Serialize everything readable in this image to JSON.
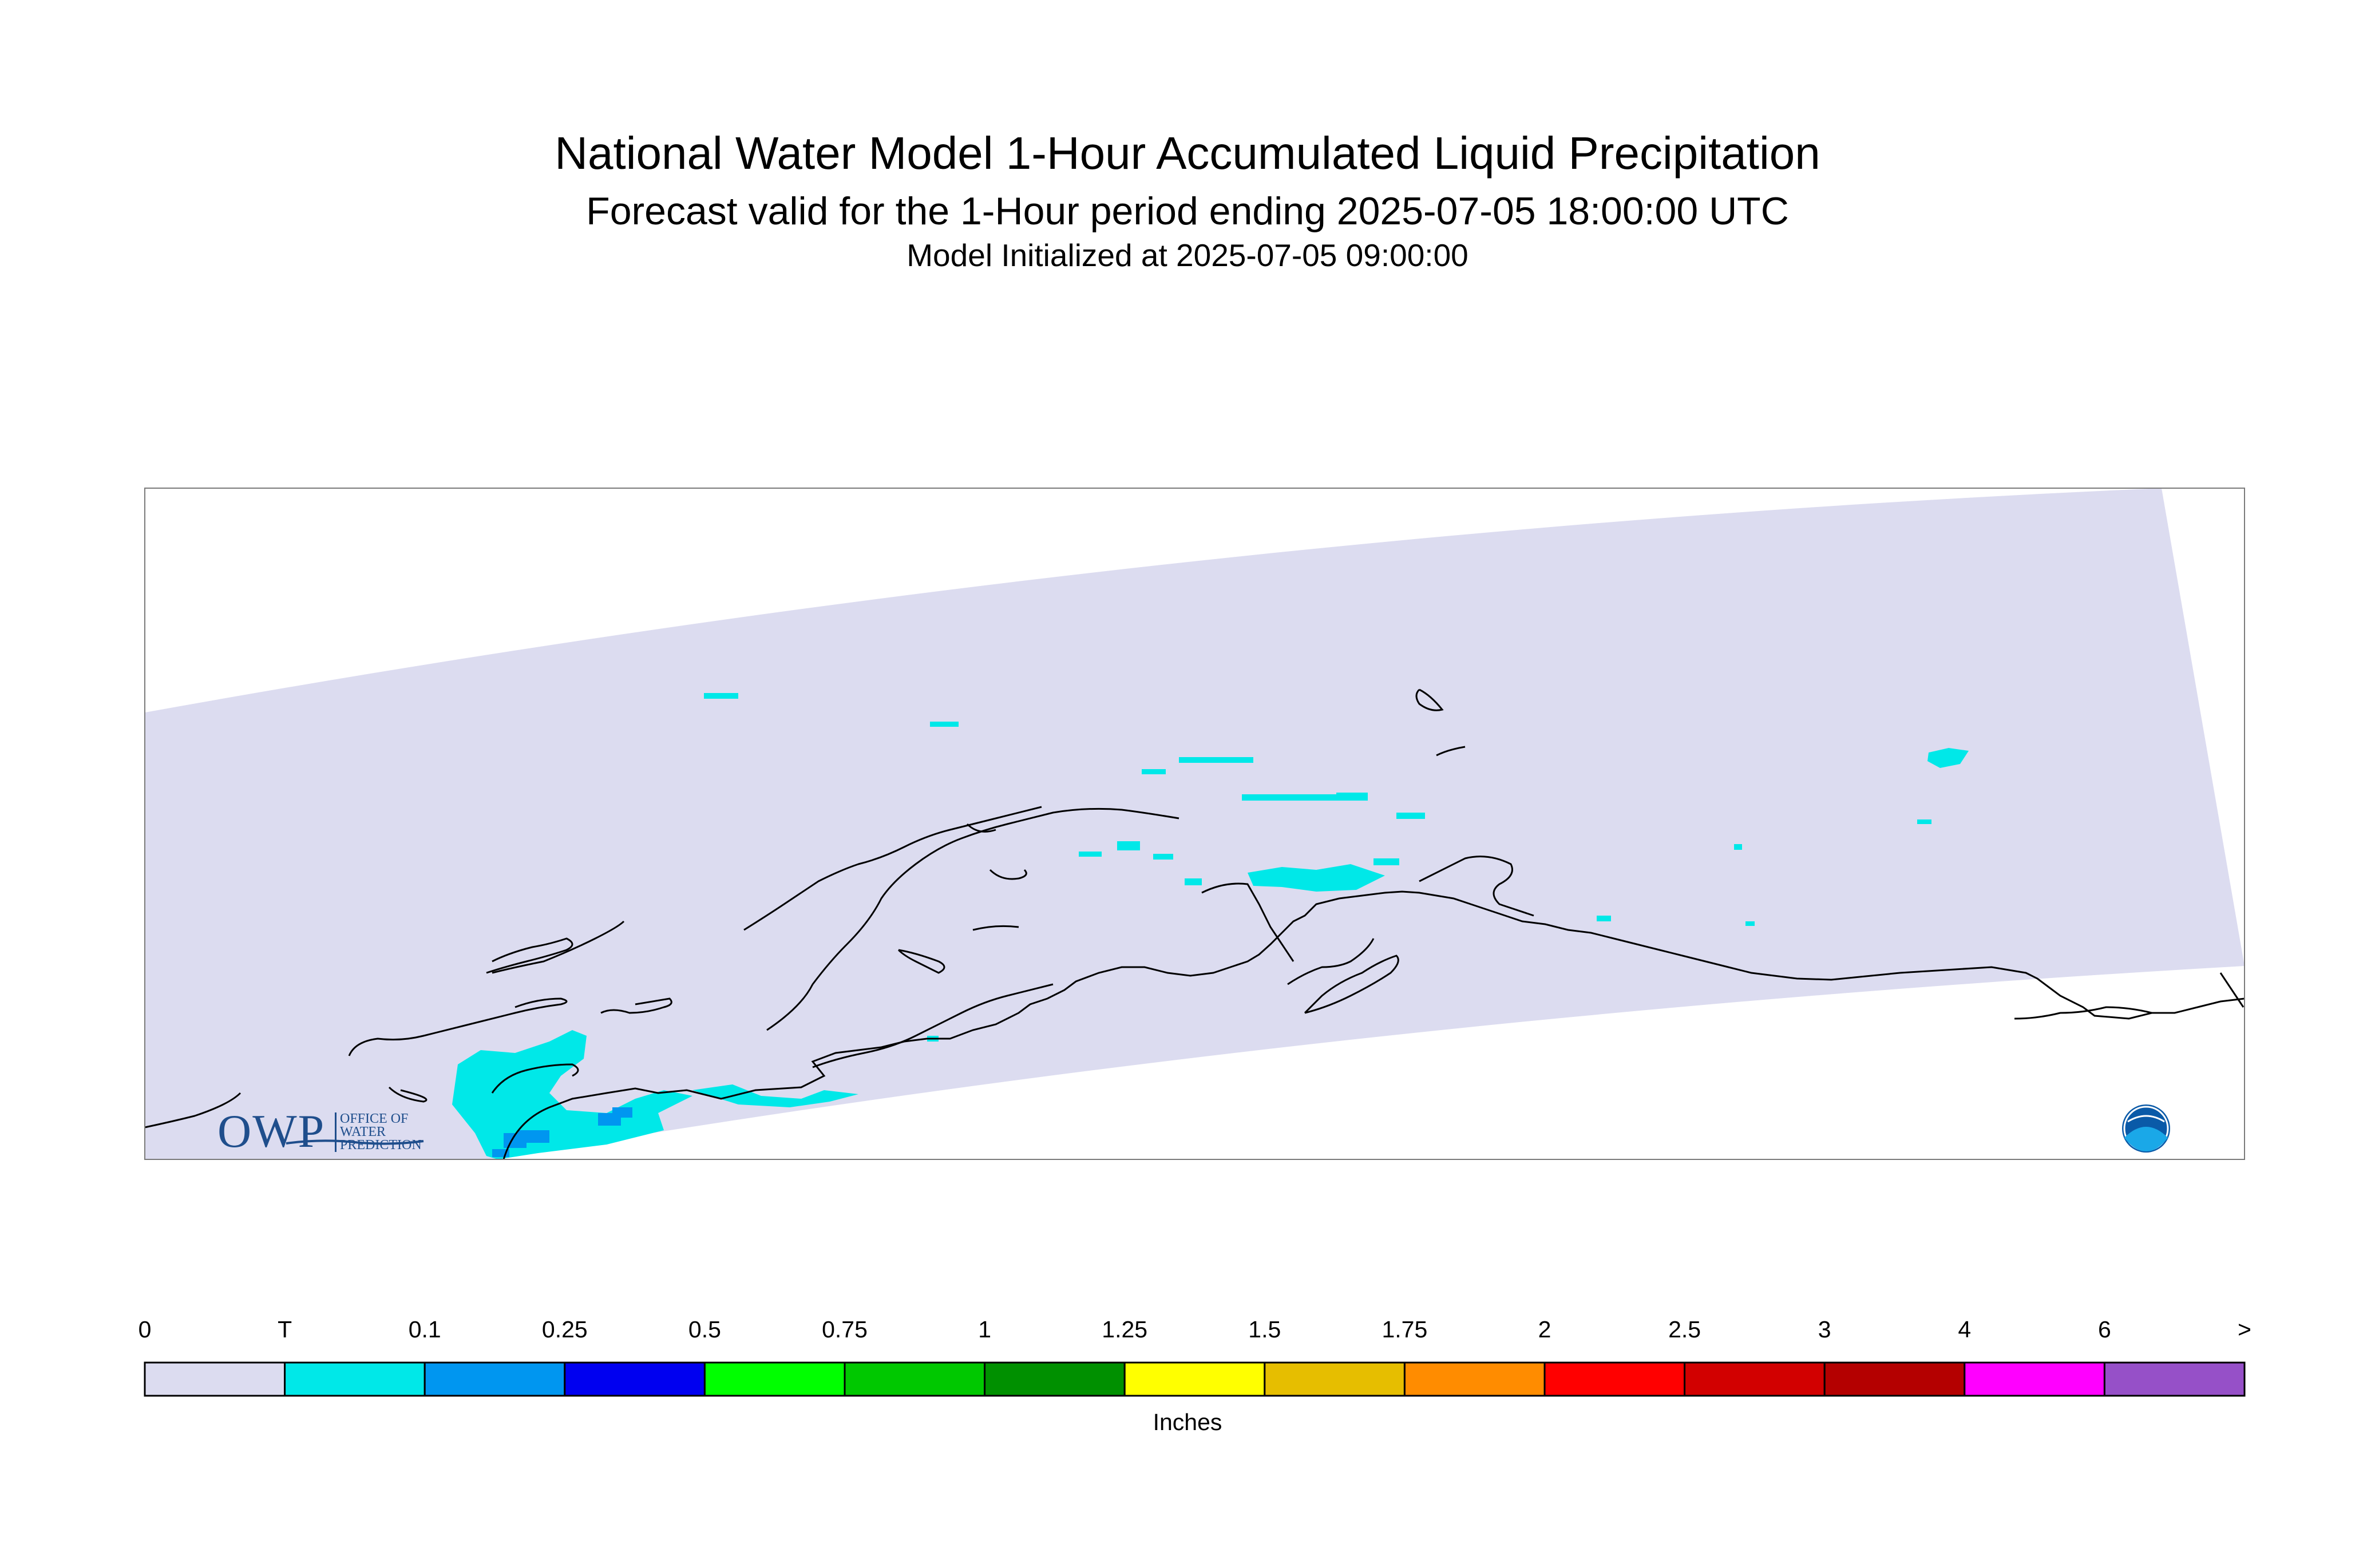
{
  "title": {
    "main": "National Water Model 1-Hour Accumulated Liquid Precipitation",
    "forecast": "Forecast valid for the 1-Hour period ending 2025-07-05 18:00:00 UTC",
    "initialized": "Model Initialized at 2025-07-05 09:00:00"
  },
  "legend": {
    "units": "Inches",
    "labels": [
      "0",
      "T",
      "0.1",
      "0.25",
      "0.5",
      "0.75",
      "1",
      "1.25",
      "1.5",
      "1.75",
      "2",
      "2.5",
      "3",
      "4",
      "6",
      ">"
    ],
    "colors": [
      "#dcdcf0",
      "#00e8e8",
      "#0096f0",
      "#0000f0",
      "#00ff00",
      "#00c800",
      "#009000",
      "#ffff00",
      "#e6be00",
      "#ff8c00",
      "#ff0000",
      "#d20000",
      "#b40000",
      "#ff00ff",
      "#9650c8"
    ]
  },
  "map": {
    "domain_fill": "#dcdcf0",
    "trace_color": "#00e8e8",
    "light_color": "#0096f0",
    "coast_color": "#000000"
  },
  "logos": {
    "owp_mark": "OWP",
    "owp_tag": [
      "OFFICE OF",
      "WATER",
      "PREDICTION"
    ],
    "noaa_icon": "noaa-logo-icon"
  }
}
